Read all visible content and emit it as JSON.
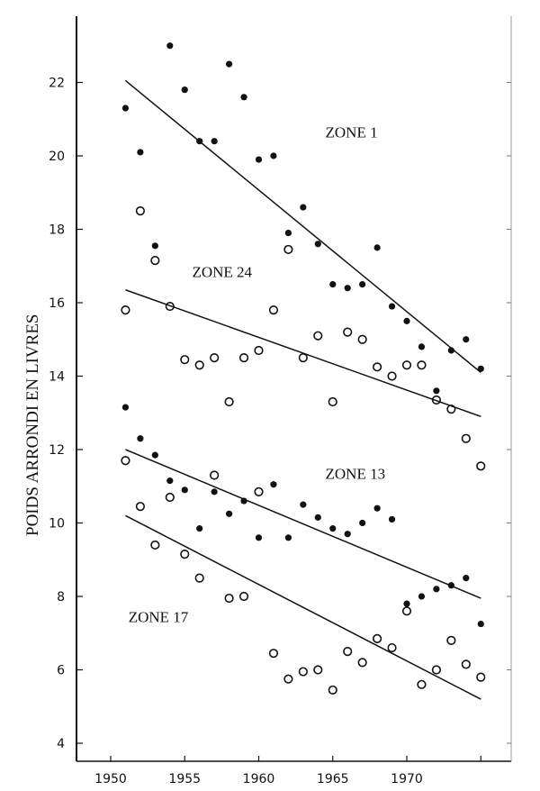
{
  "chart_data": {
    "type": "scatter",
    "title": "",
    "xlabel": "",
    "ylabel": "POIDS ARRONDI EN LIVRES",
    "xlim": [
      1948,
      1978
    ],
    "ylim": [
      4,
      23.8
    ],
    "x_ticks": [
      1950,
      1955,
      1960,
      1965,
      1970,
      1975
    ],
    "x_tick_labels": [
      "1950",
      "1955",
      "1960",
      "1965",
      "1970",
      ""
    ],
    "y_ticks": [
      4,
      6,
      8,
      10,
      12,
      14,
      16,
      18,
      20,
      22
    ],
    "grid": false,
    "x": [
      1951,
      1952,
      1953,
      1954,
      1955,
      1956,
      1957,
      1958,
      1959,
      1960,
      1961,
      1962,
      1963,
      1964,
      1965,
      1966,
      1967,
      1968,
      1969,
      1970,
      1971,
      1972,
      1973,
      1974,
      1975
    ],
    "series": [
      {
        "name": "ZONE 1",
        "marker": "filled",
        "label_at": [
          1964.5,
          20.5
        ],
        "values": [
          21.3,
          20.1,
          17.55,
          23.0,
          21.8,
          20.4,
          20.4,
          22.5,
          21.6,
          19.9,
          20.0,
          17.9,
          18.6,
          17.6,
          16.5,
          16.4,
          16.5,
          17.5,
          15.9,
          15.5,
          14.8,
          13.6,
          14.7,
          15.0,
          14.2
        ],
        "trend": [
          [
            1951,
            22.05
          ],
          [
            1975,
            14.1
          ]
        ]
      },
      {
        "name": "ZONE 24",
        "marker": "open",
        "label_at": [
          1955.5,
          16.7
        ],
        "values": [
          15.8,
          18.5,
          17.15,
          15.9,
          14.45,
          14.3,
          14.5,
          13.3,
          14.5,
          14.7,
          15.8,
          17.45,
          14.5,
          15.1,
          13.3,
          15.2,
          15.0,
          14.25,
          14.0,
          14.3,
          14.3,
          13.35,
          13.1,
          12.3,
          11.55
        ],
        "trend": [
          [
            1951,
            16.35
          ],
          [
            1975,
            12.9
          ]
        ]
      },
      {
        "name": "ZONE 13",
        "marker": "filled",
        "label_at": [
          1964.5,
          11.2
        ],
        "values": [
          13.15,
          12.3,
          11.85,
          11.15,
          10.9,
          9.85,
          10.85,
          10.25,
          10.6,
          9.6,
          11.05,
          9.6,
          10.5,
          10.15,
          9.85,
          9.7,
          10.0,
          10.4,
          10.1,
          7.8,
          8.0,
          8.2,
          8.3,
          8.5,
          7.25
        ],
        "trend": [
          [
            1951,
            12.0
          ],
          [
            1975,
            7.95
          ]
        ]
      },
      {
        "name": "ZONE 17",
        "marker": "open",
        "label_at": [
          1951.2,
          7.3
        ],
        "values": [
          11.7,
          10.45,
          9.4,
          10.7,
          9.15,
          8.5,
          11.3,
          7.95,
          8.0,
          10.85,
          6.45,
          5.75,
          5.95,
          6.0,
          5.45,
          6.5,
          6.2,
          6.85,
          6.6,
          7.6,
          5.6,
          6.0,
          6.8,
          6.15,
          5.8
        ],
        "trend": [
          [
            1951,
            10.2
          ],
          [
            1975,
            5.2
          ]
        ]
      }
    ],
    "colors": {
      "ink": "#111111",
      "background": "#ffffff"
    }
  }
}
